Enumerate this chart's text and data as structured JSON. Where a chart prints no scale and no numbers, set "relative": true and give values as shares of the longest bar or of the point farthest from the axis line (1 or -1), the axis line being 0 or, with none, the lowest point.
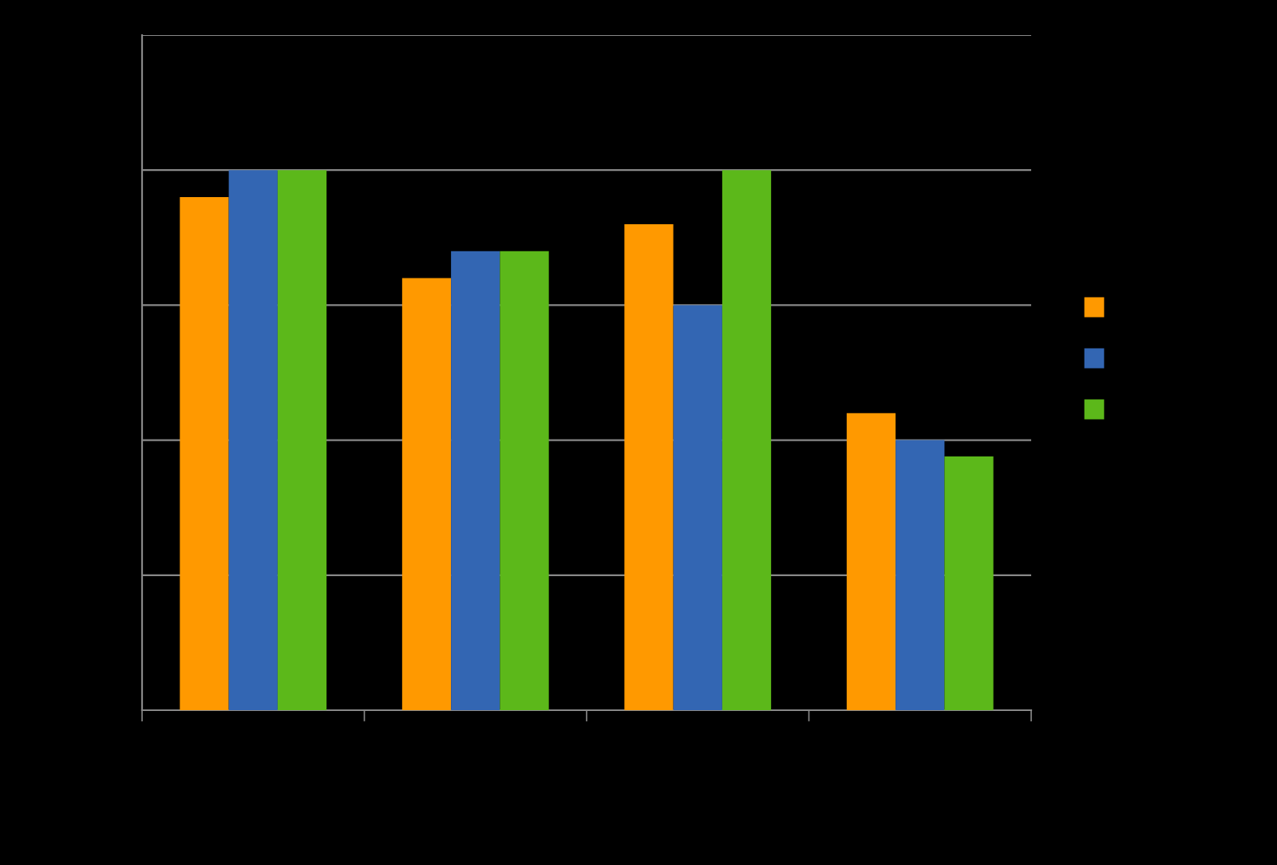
{
  "chart_data": {
    "type": "bar",
    "relative": true,
    "categories": [
      null,
      null,
      null,
      null
    ],
    "series": [
      {
        "color": "#ff9900",
        "values": [
          0.95,
          0.8,
          0.9,
          0.55
        ]
      },
      {
        "color": "#3366b3",
        "values": [
          1,
          0.85,
          0.75,
          0.5
        ]
      },
      {
        "color": "#5cb81a",
        "values": [
          1,
          0.85,
          1,
          0.47
        ]
      }
    ],
    "grid": "y"
  }
}
